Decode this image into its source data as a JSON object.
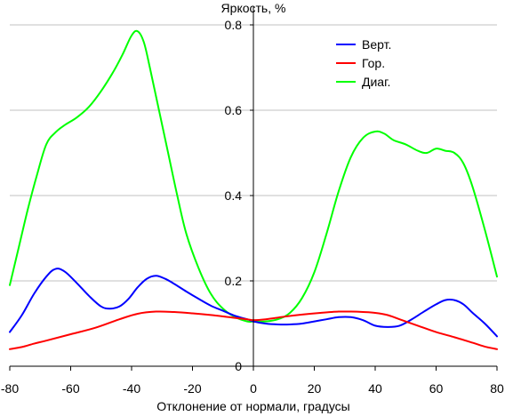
{
  "chart_data": {
    "type": "line",
    "title": "",
    "xlabel": "Отклонение от нормали, градусы",
    "ylabel": "Яркость, %",
    "xlim": [
      -80,
      80
    ],
    "ylim": [
      0,
      0.8
    ],
    "x_ticks": [
      -80,
      -60,
      -40,
      -20,
      0,
      20,
      40,
      60,
      80
    ],
    "y_ticks": [
      0.2,
      0.4,
      0.6,
      0.8
    ],
    "y_tick_labels": [
      "0.2",
      "0.4",
      "0.6",
      "0.8"
    ],
    "x_tick_labels": [
      "-80",
      "-60",
      "-40",
      "-20",
      "0",
      "20",
      "40",
      "60",
      "80"
    ],
    "y_zero_label": "0",
    "grid": "horizontal",
    "legend_position": "top-right",
    "series": [
      {
        "name": "Верт.",
        "color": "#0000ff",
        "x": [
          -80,
          -76,
          -72,
          -68,
          -65,
          -62,
          -58,
          -54,
          -50,
          -47,
          -44,
          -41,
          -38,
          -35,
          -32,
          -29,
          -26,
          -22,
          -18,
          -14,
          -10,
          -6,
          -2,
          0,
          4,
          8,
          12,
          16,
          20,
          24,
          28,
          32,
          36,
          40,
          44,
          48,
          52,
          56,
          60,
          63,
          66,
          69,
          72,
          76,
          80
        ],
        "values": [
          0.08,
          0.12,
          0.17,
          0.21,
          0.228,
          0.222,
          0.195,
          0.165,
          0.14,
          0.135,
          0.14,
          0.158,
          0.185,
          0.205,
          0.212,
          0.205,
          0.193,
          0.175,
          0.158,
          0.142,
          0.13,
          0.118,
          0.11,
          0.105,
          0.1,
          0.098,
          0.098,
          0.1,
          0.105,
          0.11,
          0.115,
          0.115,
          0.108,
          0.095,
          0.092,
          0.095,
          0.11,
          0.128,
          0.145,
          0.155,
          0.155,
          0.145,
          0.125,
          0.1,
          0.07
        ]
      },
      {
        "name": "Гор.",
        "color": "#ff0000",
        "x": [
          -80,
          -76,
          -72,
          -68,
          -60,
          -52,
          -44,
          -38,
          -32,
          -26,
          -20,
          -14,
          -8,
          -2,
          0,
          4,
          10,
          16,
          22,
          28,
          32,
          36,
          40,
          44,
          48,
          54,
          60,
          66,
          72,
          76,
          80
        ],
        "values": [
          0.04,
          0.045,
          0.053,
          0.06,
          0.075,
          0.09,
          0.11,
          0.123,
          0.128,
          0.127,
          0.124,
          0.12,
          0.115,
          0.11,
          0.108,
          0.11,
          0.116,
          0.121,
          0.125,
          0.128,
          0.128,
          0.127,
          0.125,
          0.12,
          0.11,
          0.095,
          0.08,
          0.068,
          0.055,
          0.046,
          0.04
        ]
      },
      {
        "name": "Диаг.",
        "color": "#00ff00",
        "x": [
          -80,
          -77,
          -74,
          -71,
          -68,
          -65,
          -62,
          -58,
          -54,
          -50,
          -46,
          -43,
          -40,
          -38,
          -36,
          -34,
          -31,
          -28,
          -25,
          -22,
          -18,
          -14,
          -10,
          -6,
          -2,
          0,
          4,
          8,
          12,
          16,
          20,
          24,
          28,
          32,
          36,
          40,
          43,
          46,
          50,
          54,
          57,
          60,
          63,
          66,
          69,
          72,
          76,
          80
        ],
        "values": [
          0.19,
          0.28,
          0.37,
          0.45,
          0.52,
          0.548,
          0.565,
          0.583,
          0.608,
          0.645,
          0.69,
          0.73,
          0.775,
          0.785,
          0.76,
          0.7,
          0.6,
          0.5,
          0.4,
          0.31,
          0.23,
          0.17,
          0.135,
          0.115,
          0.105,
          0.105,
          0.105,
          0.11,
          0.125,
          0.16,
          0.22,
          0.31,
          0.41,
          0.49,
          0.535,
          0.55,
          0.545,
          0.53,
          0.52,
          0.505,
          0.5,
          0.51,
          0.505,
          0.5,
          0.475,
          0.42,
          0.32,
          0.21
        ]
      }
    ]
  }
}
